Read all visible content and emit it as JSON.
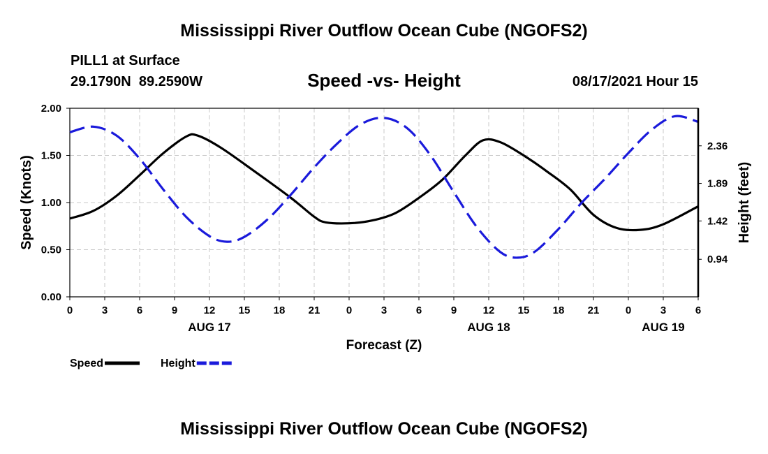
{
  "page": {
    "top_title": "Mississippi River Outflow Ocean Cube (NGOFS2)",
    "bottom_title": "Mississippi River Outflow Ocean Cube (NGOFS2)",
    "station_line": "PILL1 at Surface",
    "coords_line": "29.1790N  89.2590W",
    "subtitle": "Speed -vs- Height",
    "datetime": "08/17/2021 Hour 15"
  },
  "chart_data": {
    "type": "line",
    "title": "Speed -vs- Height",
    "xlabel": "Forecast (Z)",
    "ylabel_left": "Speed (Knots)",
    "ylabel_right": "Height (feet)",
    "x_range_hours": [
      0,
      54
    ],
    "x_ticks": [
      {
        "hour": 0,
        "label": "0"
      },
      {
        "hour": 3,
        "label": "3"
      },
      {
        "hour": 6,
        "label": "6"
      },
      {
        "hour": 9,
        "label": "9"
      },
      {
        "hour": 12,
        "label": "12"
      },
      {
        "hour": 15,
        "label": "15"
      },
      {
        "hour": 18,
        "label": "18"
      },
      {
        "hour": 21,
        "label": "21"
      },
      {
        "hour": 24,
        "label": "0"
      },
      {
        "hour": 27,
        "label": "3"
      },
      {
        "hour": 30,
        "label": "6"
      },
      {
        "hour": 33,
        "label": "9"
      },
      {
        "hour": 36,
        "label": "12"
      },
      {
        "hour": 39,
        "label": "15"
      },
      {
        "hour": 42,
        "label": "18"
      },
      {
        "hour": 45,
        "label": "21"
      },
      {
        "hour": 48,
        "label": "0"
      },
      {
        "hour": 51,
        "label": "3"
      },
      {
        "hour": 54,
        "label": "6"
      }
    ],
    "date_labels": [
      {
        "hour": 12,
        "label": "AUG 17"
      },
      {
        "hour": 36,
        "label": "AUG 18"
      },
      {
        "hour": 51,
        "label": "AUG 19"
      }
    ],
    "left_axis": {
      "min": 0.0,
      "max": 2.0,
      "ticks": [
        "0.00",
        "0.50",
        "1.00",
        "1.50",
        "2.00"
      ]
    },
    "right_axis": {
      "min": 0.47,
      "max": 2.83,
      "ticks": [
        "0.94",
        "1.42",
        "1.89",
        "2.36"
      ]
    },
    "grid": true,
    "series": [
      {
        "name": "Speed",
        "axis": "left",
        "color": "#000000",
        "style": "solid",
        "x": [
          0,
          2,
          4,
          6,
          8,
          10,
          11,
          13,
          16,
          19,
          21,
          22,
          24,
          26,
          28,
          30,
          32,
          34,
          35.5,
          37,
          39,
          41,
          43,
          45,
          47,
          49,
          51,
          54
        ],
        "y": [
          0.83,
          0.91,
          1.07,
          1.29,
          1.52,
          1.7,
          1.71,
          1.58,
          1.32,
          1.05,
          0.85,
          0.79,
          0.78,
          0.81,
          0.89,
          1.05,
          1.24,
          1.5,
          1.66,
          1.64,
          1.5,
          1.33,
          1.14,
          0.87,
          0.73,
          0.71,
          0.77,
          0.96
        ]
      },
      {
        "name": "Height",
        "axis": "right",
        "color": "#1a1adb",
        "style": "dashed",
        "x": [
          0,
          2,
          4,
          6,
          8,
          10,
          12,
          13.5,
          15,
          17,
          19,
          21,
          23,
          25,
          27,
          29,
          31,
          33,
          35,
          37,
          38.5,
          40,
          42,
          44,
          46,
          48,
          50,
          52,
          54
        ],
        "y": [
          2.53,
          2.6,
          2.49,
          2.2,
          1.82,
          1.47,
          1.23,
          1.16,
          1.22,
          1.44,
          1.75,
          2.09,
          2.39,
          2.63,
          2.71,
          2.58,
          2.24,
          1.78,
          1.34,
          1.03,
          0.96,
          1.04,
          1.32,
          1.65,
          1.95,
          2.27,
          2.56,
          2.73,
          2.66
        ]
      }
    ],
    "legend": [
      {
        "label": "Speed",
        "color": "#000000",
        "style": "solid"
      },
      {
        "label": "Height",
        "color": "#1a1adb",
        "style": "dashed"
      }
    ]
  }
}
